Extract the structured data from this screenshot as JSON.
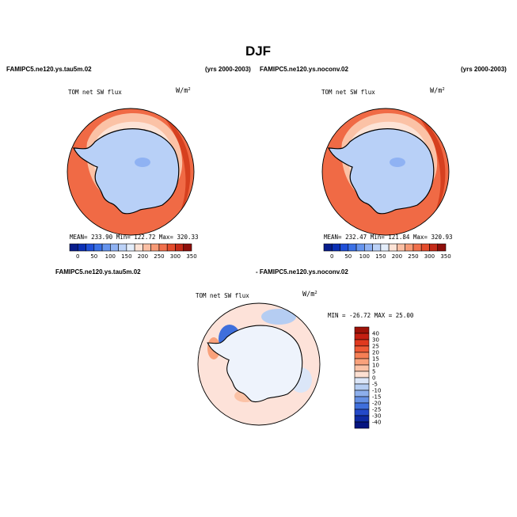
{
  "figure_title": "DJF",
  "case_labels": {
    "top_left_case": "FAMIPC5.ne120.ys.tau5m.02",
    "top_left_years": "(yrs 2000-2003)",
    "top_right_case": "FAMIPC5.ne120.ys.noconv.02",
    "top_right_years": "(yrs 2000-2003)",
    "bottom_case_a": "FAMIPC5.ne120.ys.tau5m.02",
    "bottom_case_b": "- FAMIPC5.ne120.ys.noconv.02"
  },
  "colors": {
    "ocean": "#f06a45",
    "land": "#b8d0f7",
    "diff_background": "#fde2d9"
  },
  "chart_data": [
    {
      "type": "heatmap",
      "projection": "polar-stereographic-south",
      "title": "TOM net SW flux",
      "units_label": "W/m",
      "units_exp": "2",
      "stats": {
        "mean": "233.90",
        "min": "122.72",
        "max": "320.33"
      },
      "stats_text": "MEAN= 233.90  Min= 122.72  Max= 320.33",
      "colorbar": {
        "orientation": "horizontal",
        "levels": [
          0,
          25,
          50,
          75,
          100,
          125,
          150,
          175,
          200,
          225,
          250,
          275,
          300,
          325,
          350
        ],
        "tick_labels": [
          "0",
          "50",
          "100",
          "150",
          "200",
          "250",
          "300",
          "350"
        ],
        "colors": [
          "#081d8c",
          "#0b2fb5",
          "#1f4fd8",
          "#3a70e6",
          "#6594ee",
          "#8fb2f3",
          "#bcd2f7",
          "#e4eefb",
          "#fde3d6",
          "#fbbfa4",
          "#f79a76",
          "#f1704c",
          "#e44c2c",
          "#c52a18",
          "#8e0f0b"
        ]
      }
    },
    {
      "type": "heatmap",
      "projection": "polar-stereographic-south",
      "title": "TOM net SW flux",
      "units_label": "W/m",
      "units_exp": "2",
      "stats": {
        "mean": "232.47",
        "min": "121.84",
        "max": "320.93"
      },
      "stats_text": "MEAN= 232.47  Min= 121.84  Max= 320.93",
      "colorbar": {
        "orientation": "horizontal",
        "levels": [
          0,
          25,
          50,
          75,
          100,
          125,
          150,
          175,
          200,
          225,
          250,
          275,
          300,
          325,
          350
        ],
        "tick_labels": [
          "0",
          "50",
          "100",
          "150",
          "200",
          "250",
          "300",
          "350"
        ],
        "colors": [
          "#081d8c",
          "#0b2fb5",
          "#1f4fd8",
          "#3a70e6",
          "#6594ee",
          "#8fb2f3",
          "#bcd2f7",
          "#e4eefb",
          "#fde3d6",
          "#fbbfa4",
          "#f79a76",
          "#f1704c",
          "#e44c2c",
          "#c52a18",
          "#8e0f0b"
        ]
      }
    },
    {
      "type": "heatmap",
      "projection": "polar-stereographic-south",
      "title": "TOM net SW flux",
      "units_label": "W/m",
      "units_exp": "2",
      "stats": {
        "min": "-26.72",
        "max": "25.00"
      },
      "stats_text": "MIN = -26.72  MAX =   25.00",
      "colorbar": {
        "orientation": "vertical",
        "levels": [
          -40,
          -30,
          -25,
          -20,
          -15,
          -10,
          -5,
          0,
          5,
          10,
          15,
          20,
          25,
          30,
          40
        ],
        "tick_labels": [
          "40",
          "30",
          "25",
          "20",
          "15",
          "10",
          "5",
          "0",
          "-5",
          "-10",
          "-15",
          "-20",
          "-25",
          "-30",
          "-40"
        ],
        "colors": [
          "#9e1208",
          "#c51f12",
          "#e0391f",
          "#ef5a36",
          "#f67f55",
          "#f9a17b",
          "#fbc2a6",
          "#fde0d2",
          "#dbe6f8",
          "#b5cdf2",
          "#8dafec",
          "#6590e4",
          "#3f6fdc",
          "#2449c9",
          "#0f2aa3",
          "#061580"
        ]
      }
    }
  ]
}
